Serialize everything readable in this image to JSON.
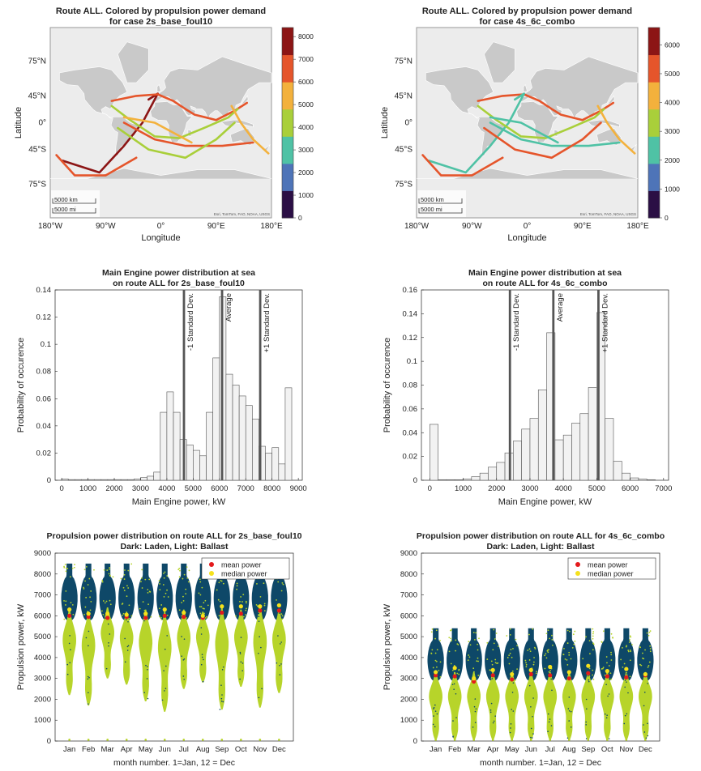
{
  "colors": {
    "land": "#c9c9c9",
    "ocean": "#ececec",
    "bar_fill": "#f2f2f2",
    "bar_stroke": "#555555",
    "ref_line": "#555555",
    "laden": "#0e4868",
    "ballast": "#b7d42a",
    "mean_marker": "#e41a1c",
    "median_marker": "#f5e11c",
    "colormap": [
      "#2b0f45",
      "#4e74b8",
      "#4fc2a5",
      "#a9cf3a",
      "#f3b13c",
      "#e5552b",
      "#8c1515"
    ]
  },
  "chart_data": [
    {
      "type": "map",
      "id": "map1",
      "title": "Route ALL. Colored by propulsion power demand",
      "subtitle": "for case 2s_base_foul10",
      "xlabel": "Longitude",
      "ylabel": "Latitude",
      "lon_ticks": [
        -180,
        -90,
        0,
        90,
        180
      ],
      "lon_tick_labels": [
        "180°W",
        "90°W",
        "0°",
        "90°E",
        "180°E"
      ],
      "lat_ticks": [
        75,
        45,
        0,
        -45,
        -75
      ],
      "lat_tick_labels": [
        "75°N",
        "45°N",
        "0°",
        "45°S",
        "75°S"
      ],
      "colorbar_ticks": [
        0,
        1000,
        2000,
        3000,
        4000,
        5000,
        6000,
        7000,
        8000
      ],
      "colorbar_range": [
        0,
        8400
      ],
      "scale_km": "5000 km",
      "scale_mi": "5000 mi",
      "attribution": "Esri, TomTom, FAO, NOAA, USGS",
      "routes": [
        {
          "color_index": 6,
          "points": [
            [
              -20,
              40
            ],
            [
              -5,
              48
            ],
            [
              -30,
              0
            ],
            [
              -60,
              -40
            ],
            [
              -100,
              -68
            ],
            [
              -160,
              -58
            ]
          ]
        },
        {
          "color_index": 5,
          "points": [
            [
              -80,
              38
            ],
            [
              -40,
              45
            ],
            [
              -5,
              47
            ]
          ]
        },
        {
          "color_index": 5,
          "points": [
            [
              -5,
              47
            ],
            [
              20,
              38
            ],
            [
              40,
              25
            ],
            [
              55,
              15
            ],
            [
              90,
              5
            ],
            [
              120,
              22
            ],
            [
              140,
              35
            ]
          ]
        },
        {
          "color_index": 5,
          "points": [
            [
              -170,
              -52
            ],
            [
              -140,
              -70
            ],
            [
              -90,
              -70
            ],
            [
              -40,
              -55
            ]
          ]
        },
        {
          "color_index": 5,
          "points": [
            [
              -60,
              0
            ],
            [
              -10,
              -30
            ],
            [
              40,
              -40
            ],
            [
              100,
              -40
            ],
            [
              150,
              -35
            ]
          ]
        },
        {
          "color_index": 3,
          "points": [
            [
              -80,
              30
            ],
            [
              -50,
              5
            ],
            [
              -10,
              -25
            ],
            [
              30,
              -28
            ],
            [
              70,
              -10
            ],
            [
              110,
              10
            ],
            [
              125,
              25
            ]
          ]
        },
        {
          "color_index": 3,
          "points": [
            [
              -70,
              -10
            ],
            [
              -20,
              -45
            ],
            [
              40,
              -55
            ],
            [
              90,
              -30
            ],
            [
              120,
              0
            ]
          ]
        },
        {
          "color_index": 4,
          "points": [
            [
              115,
              30
            ],
            [
              130,
              0
            ],
            [
              150,
              -30
            ],
            [
              175,
              -50
            ]
          ]
        },
        {
          "color_index": 4,
          "points": [
            [
              -60,
              10
            ],
            [
              -10,
              0
            ],
            [
              50,
              -35
            ]
          ]
        }
      ]
    },
    {
      "type": "map",
      "id": "map2",
      "title": "Route ALL. Colored by propulsion power demand",
      "subtitle": "for case 4s_6c_combo",
      "xlabel": "Longitude",
      "ylabel": "Latitude",
      "lon_ticks": [
        -180,
        -90,
        0,
        90,
        180
      ],
      "lon_tick_labels": [
        "180°W",
        "90°W",
        "0°",
        "90°E",
        "180°E"
      ],
      "lat_ticks": [
        75,
        45,
        0,
        -45,
        -75
      ],
      "lat_tick_labels": [
        "75°N",
        "45°N",
        "0°",
        "45°S",
        "75°S"
      ],
      "colorbar_ticks": [
        0,
        1000,
        2000,
        3000,
        4000,
        5000,
        6000
      ],
      "colorbar_range": [
        0,
        6600
      ],
      "scale_km": "5000 km",
      "scale_mi": "5000 mi",
      "attribution": "Esri, TomTom, FAO, NOAA, USGS",
      "routes": [
        {
          "color_index": 5,
          "points": [
            [
              -80,
              38
            ],
            [
              -40,
              45
            ],
            [
              -5,
              47
            ]
          ]
        },
        {
          "color_index": 5,
          "points": [
            [
              -5,
              47
            ],
            [
              20,
              38
            ],
            [
              40,
              25
            ],
            [
              55,
              15
            ],
            [
              90,
              5
            ],
            [
              120,
              22
            ],
            [
              140,
              35
            ]
          ]
        },
        {
          "color_index": 2,
          "points": [
            [
              -20,
              40
            ],
            [
              -5,
              48
            ],
            [
              -30,
              0
            ],
            [
              -60,
              -40
            ],
            [
              -100,
              -68
            ],
            [
              -160,
              -58
            ]
          ]
        },
        {
          "color_index": 5,
          "points": [
            [
              -170,
              -52
            ],
            [
              -140,
              -70
            ],
            [
              -90,
              -70
            ],
            [
              -40,
              -55
            ]
          ]
        },
        {
          "color_index": 2,
          "points": [
            [
              -60,
              0
            ],
            [
              -10,
              -30
            ],
            [
              40,
              -40
            ],
            [
              100,
              -40
            ],
            [
              150,
              -35
            ]
          ]
        },
        {
          "color_index": 3,
          "points": [
            [
              -80,
              30
            ],
            [
              -50,
              5
            ],
            [
              -10,
              -25
            ],
            [
              30,
              -28
            ],
            [
              70,
              -10
            ],
            [
              110,
              10
            ],
            [
              125,
              25
            ]
          ]
        },
        {
          "color_index": 5,
          "points": [
            [
              -70,
              -10
            ],
            [
              -20,
              -45
            ],
            [
              40,
              -55
            ],
            [
              90,
              -30
            ],
            [
              120,
              0
            ]
          ]
        },
        {
          "color_index": 4,
          "points": [
            [
              115,
              30
            ],
            [
              130,
              0
            ],
            [
              150,
              -30
            ],
            [
              175,
              -50
            ]
          ]
        },
        {
          "color_index": 2,
          "points": [
            [
              -60,
              10
            ],
            [
              -10,
              0
            ],
            [
              50,
              -35
            ]
          ]
        }
      ]
    },
    {
      "type": "bar",
      "id": "hist1",
      "title": "Main Engine power distribution at sea",
      "subtitle": "on route ALL for 2s_base_foul10",
      "xlabel": "Main Engine power, kW",
      "ylabel": "Probability of occurence",
      "xlim": [
        -250,
        9150
      ],
      "ylim": [
        0,
        0.14
      ],
      "xticks": [
        0,
        1000,
        2000,
        3000,
        4000,
        5000,
        6000,
        7000,
        8000,
        9000
      ],
      "yticks": [
        0,
        0.02,
        0.04,
        0.06,
        0.08,
        0.1,
        0.12,
        0.14
      ],
      "ytick_labels": [
        "0",
        "0.02",
        "0.04",
        "0.06",
        "0.08",
        "0.1",
        "0.12",
        "0.14"
      ],
      "bin_width": 250,
      "bin_starts": [
        0,
        250,
        500,
        750,
        1000,
        1250,
        1500,
        1750,
        2000,
        2250,
        2500,
        2750,
        3000,
        3250,
        3500,
        3750,
        4000,
        4250,
        4500,
        4750,
        5000,
        5250,
        5500,
        5750,
        6000,
        6250,
        6500,
        6750,
        7000,
        7250,
        7500,
        7750,
        8000,
        8250,
        8500
      ],
      "values": [
        0.001,
        0.0005,
        0.0005,
        0.0005,
        0.0005,
        0.0005,
        0.0005,
        0.0005,
        0.0005,
        0.0005,
        0.0005,
        0.001,
        0.002,
        0.003,
        0.006,
        0.05,
        0.065,
        0.05,
        0.03,
        0.026,
        0.022,
        0.018,
        0.05,
        0.09,
        0.135,
        0.078,
        0.07,
        0.062,
        0.055,
        0.045,
        0.025,
        0.02,
        0.024,
        0.012,
        0.068
      ],
      "ref_lines": [
        {
          "x": 4650,
          "label": "-1 Standard Dev."
        },
        {
          "x": 6100,
          "label": "Average"
        },
        {
          "x": 7550,
          "label": "+1 Standard Dev."
        }
      ]
    },
    {
      "type": "bar",
      "id": "hist2",
      "title": "Main Engine power distribution at sea",
      "subtitle": "on route ALL for 4s_6c_combo",
      "xlabel": "Main Engine power, kW",
      "ylabel": "Probability of occurence",
      "xlim": [
        -250,
        7150
      ],
      "ylim": [
        0,
        0.16
      ],
      "xticks": [
        0,
        1000,
        2000,
        3000,
        4000,
        5000,
        6000,
        7000
      ],
      "yticks": [
        0,
        0.02,
        0.04,
        0.06,
        0.08,
        0.1,
        0.12,
        0.14,
        0.16
      ],
      "ytick_labels": [
        "0",
        "0.02",
        "0.04",
        "0.06",
        "0.08",
        "0.1",
        "0.12",
        "0.14",
        "0.16"
      ],
      "bin_width": 250,
      "bin_starts": [
        0,
        250,
        500,
        750,
        1000,
        1250,
        1500,
        1750,
        2000,
        2250,
        2500,
        2750,
        3000,
        3250,
        3500,
        3750,
        4000,
        4250,
        4500,
        4750,
        5000,
        5250,
        5500,
        5750,
        6000,
        6250,
        6500
      ],
      "values": [
        0.047,
        0.0005,
        0.0005,
        0.0005,
        0.001,
        0.003,
        0.006,
        0.011,
        0.015,
        0.023,
        0.033,
        0.043,
        0.052,
        0.076,
        0.124,
        0.034,
        0.038,
        0.048,
        0.056,
        0.078,
        0.141,
        0.052,
        0.016,
        0.006,
        0.002,
        0.001,
        0.0005
      ],
      "ref_lines": [
        {
          "x": 2400,
          "label": "-1 Standard Dev."
        },
        {
          "x": 3700,
          "label": "Average"
        },
        {
          "x": 5050,
          "label": "+1 Standard Dev."
        }
      ]
    },
    {
      "type": "violin",
      "id": "violin1",
      "title": "Propulsion power distribution on route ALL for 2s_base_foul10",
      "subtitle": "Dark: Laden, Light: Ballast",
      "xlabel": "month number.  1=Jan, 12 = Dec",
      "ylabel": "Propulsion power, kW",
      "ylim": [
        0,
        9000
      ],
      "yticks": [
        0,
        1000,
        2000,
        3000,
        4000,
        5000,
        6000,
        7000,
        8000,
        9000
      ],
      "categories": [
        "Jan",
        "Feb",
        "Mar",
        "Apr",
        "May",
        "Jun",
        "Jul",
        "Aug",
        "Sep",
        "Oct",
        "Nov",
        "Dec"
      ],
      "legend": [
        {
          "label": "mean power",
          "marker": "mean"
        },
        {
          "label": "median power",
          "marker": "median"
        }
      ],
      "laden_range": [
        5800,
        8500
      ],
      "ballast_min": [
        2200,
        1700,
        3000,
        2700,
        1900,
        1400,
        2500,
        2800,
        1500,
        2600,
        1600,
        2300
      ],
      "ballast_max": [
        6300,
        6200,
        6400,
        6200,
        6300,
        6200,
        6300,
        6200,
        6400,
        6300,
        6500,
        6300
      ],
      "mean": [
        6000,
        5950,
        5900,
        5950,
        5900,
        6000,
        5950,
        5900,
        6150,
        6100,
        6250,
        6250
      ],
      "median": [
        6300,
        6100,
        6100,
        6050,
        6100,
        6300,
        6150,
        6000,
        6450,
        6450,
        6450,
        6500
      ]
    },
    {
      "type": "violin",
      "id": "violin2",
      "title": "Propulsion power distribution on route ALL for 4s_6c_combo",
      "subtitle": "Dark: Laden, Light: Ballast",
      "xlabel": "month number.  1=Jan, 12 = Dec",
      "ylabel": "Propulsion power, kW",
      "ylim": [
        0,
        9000
      ],
      "yticks": [
        0,
        1000,
        2000,
        3000,
        4000,
        5000,
        6000,
        7000,
        8000,
        9000
      ],
      "categories": [
        "Jan",
        "Feb",
        "Mar",
        "Apr",
        "May",
        "Jun",
        "Jul",
        "Aug",
        "Sep",
        "Oct",
        "Nov",
        "Dec"
      ],
      "legend": [
        {
          "label": "mean power",
          "marker": "mean"
        },
        {
          "label": "median power",
          "marker": "median"
        }
      ],
      "laden_range": [
        2900,
        5400
      ],
      "ballast_min": [
        50,
        50,
        50,
        50,
        50,
        50,
        50,
        50,
        50,
        50,
        50,
        50
      ],
      "ballast_max": [
        3300,
        3300,
        3300,
        3300,
        3300,
        3300,
        3300,
        3300,
        3300,
        3300,
        3300,
        3300
      ],
      "mean": [
        3150,
        3100,
        2850,
        3150,
        2950,
        3200,
        3150,
        3000,
        3250,
        3100,
        3050,
        3150
      ],
      "median": [
        3300,
        3500,
        3000,
        3400,
        3200,
        3400,
        3550,
        3300,
        3600,
        3350,
        3450,
        3200
      ]
    }
  ]
}
